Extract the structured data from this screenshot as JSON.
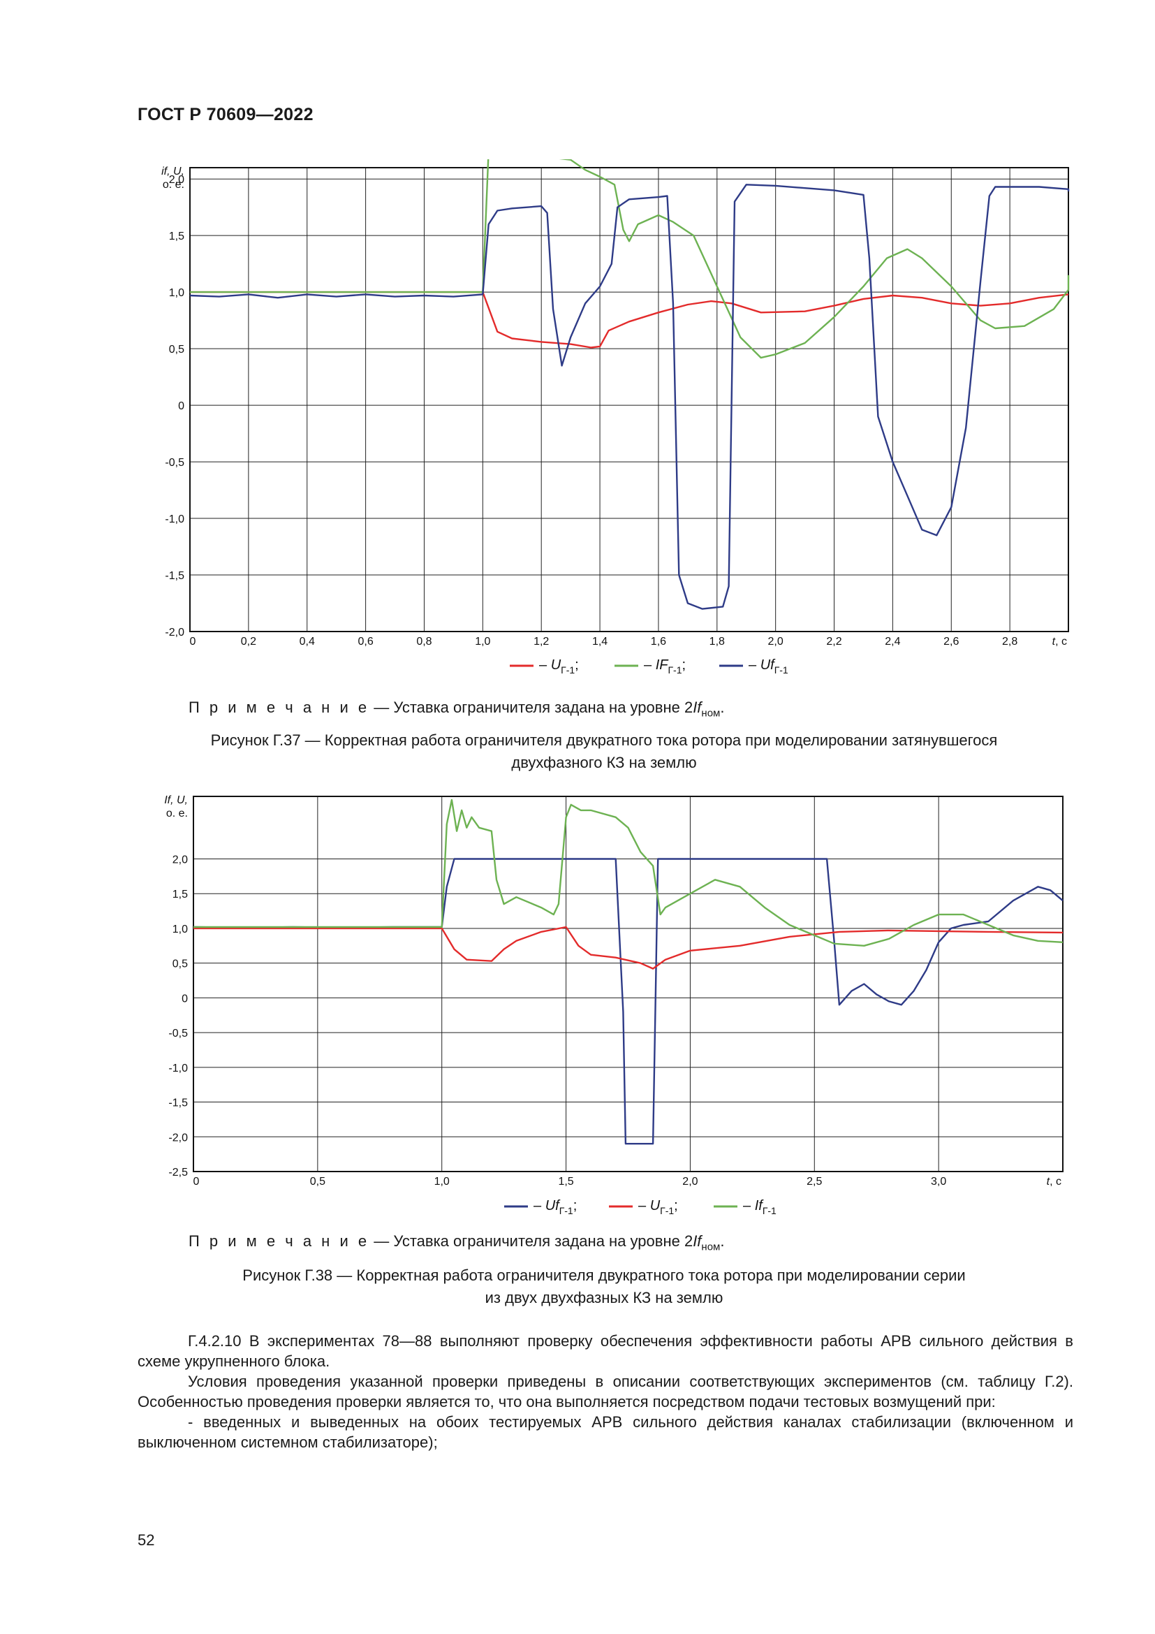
{
  "header": {
    "doc_id": "ГОСТ Р 70609—2022"
  },
  "figure1": {
    "note_prefix": "П р и м е ч а н и е",
    "note_text": " — Уставка ограничителя задана на уровне 2",
    "note_var": "If",
    "note_sub": "ном",
    "note_end": ".",
    "caption_line1": "Рисунок Г.37 — Корректная работа ограничителя двукратного тока ротора при моделировании затянувшегося",
    "caption_line2": "двухфазного КЗ на землю"
  },
  "figure2": {
    "note_prefix": "П р и м е ч а н и е",
    "note_text": " — Уставка ограничителя задана на уровне 2",
    "note_var": "If",
    "note_sub": "ном",
    "note_end": ".",
    "caption_line1": "Рисунок Г.38 — Корректная работа ограничителя двукратного тока ротора при моделировании серии",
    "caption_line2": "из двух двухфазных КЗ на землю"
  },
  "body": {
    "para1": "Г.4.2.10 В экспериментах 78—88 выполняют проверку обеспечения эффективности работы АРВ сильного действия в схеме укрупненного блока.",
    "para2": "Условия проведения указанной проверки приведены в описании соответствующих экспериментов (см. таблицу Г.2). Особенностью проведения проверки является то, что она выполняется посредством подачи тестовых возмущений при:",
    "para3": "- введенных и выведенных на обоих тестируемых АРВ сильного действия каналах стабилизации (включенном и выключенном системном стабилизаторе);"
  },
  "page_number": "52",
  "chart_data": [
    {
      "type": "line",
      "ylabel": [
        "if, U,",
        "о. е."
      ],
      "xlabel_var": "t",
      "xlabel_unit": ", с",
      "xlim": [
        0,
        3.0
      ],
      "ylim": [
        -2.0,
        2.1
      ],
      "x_ticks": [
        0,
        0.2,
        0.4,
        0.6,
        0.8,
        1.0,
        1.2,
        1.4,
        1.6,
        1.8,
        2.0,
        2.2,
        2.4,
        2.6,
        2.8
      ],
      "x_tick_labels": [
        "0",
        "0,2",
        "0,4",
        "0,6",
        "0,8",
        "1,0",
        "1,2",
        "1,4",
        "1,6",
        "1,8",
        "2,0",
        "2,2",
        "2,4",
        "2,6",
        "2,8"
      ],
      "y_ticks": [
        -2.0,
        -1.5,
        -1.0,
        -0.5,
        0,
        0.5,
        1.0,
        1.5,
        2.0
      ],
      "y_tick_labels": [
        "-2,0",
        "-1,5",
        "-1,0",
        "-0,5",
        "0",
        "0,5",
        "1,0",
        "1,5",
        "2,0"
      ],
      "grid": true,
      "legend_order": [
        "U",
        "IF",
        "Uf"
      ],
      "series": [
        {
          "id": "U",
          "name_var": "U",
          "name_sub": "Г-1",
          "legend_sep": ";",
          "color": "#e32b2b",
          "points": [
            [
              0,
              1.0
            ],
            [
              1.0,
              1.0
            ],
            [
              1.05,
              0.65
            ],
            [
              1.1,
              0.59
            ],
            [
              1.2,
              0.56
            ],
            [
              1.3,
              0.54
            ],
            [
              1.37,
              0.51
            ],
            [
              1.4,
              0.52
            ],
            [
              1.43,
              0.66
            ],
            [
              1.5,
              0.74
            ],
            [
              1.6,
              0.82
            ],
            [
              1.7,
              0.89
            ],
            [
              1.78,
              0.92
            ],
            [
              1.85,
              0.9
            ],
            [
              1.95,
              0.82
            ],
            [
              2.1,
              0.83
            ],
            [
              2.2,
              0.88
            ],
            [
              2.3,
              0.94
            ],
            [
              2.4,
              0.97
            ],
            [
              2.5,
              0.95
            ],
            [
              2.6,
              0.9
            ],
            [
              2.7,
              0.88
            ],
            [
              2.8,
              0.9
            ],
            [
              2.9,
              0.95
            ],
            [
              3.0,
              0.98
            ]
          ]
        },
        {
          "id": "IF",
          "name_var": "IF",
          "name_sub": "Г-1",
          "legend_sep": ";",
          "color": "#6db252",
          "points": [
            [
              0,
              1.0
            ],
            [
              1.0,
              1.0
            ],
            [
              1.02,
              2.25
            ],
            [
              1.04,
              2.35
            ],
            [
              1.06,
              2.2
            ],
            [
              1.08,
              2.3
            ],
            [
              1.1,
              2.2
            ],
            [
              1.12,
              2.25
            ],
            [
              1.14,
              2.2
            ],
            [
              1.16,
              2.22
            ],
            [
              1.2,
              2.2
            ],
            [
              1.3,
              2.17
            ],
            [
              1.35,
              2.08
            ],
            [
              1.4,
              2.02
            ],
            [
              1.45,
              1.95
            ],
            [
              1.48,
              1.55
            ],
            [
              1.5,
              1.45
            ],
            [
              1.53,
              1.6
            ],
            [
              1.6,
              1.68
            ],
            [
              1.65,
              1.62
            ],
            [
              1.72,
              1.5
            ],
            [
              1.8,
              1.05
            ],
            [
              1.88,
              0.6
            ],
            [
              1.95,
              0.42
            ],
            [
              2.0,
              0.45
            ],
            [
              2.1,
              0.55
            ],
            [
              2.2,
              0.78
            ],
            [
              2.3,
              1.05
            ],
            [
              2.38,
              1.3
            ],
            [
              2.45,
              1.38
            ],
            [
              2.5,
              1.3
            ],
            [
              2.6,
              1.05
            ],
            [
              2.7,
              0.75
            ],
            [
              2.75,
              0.68
            ],
            [
              2.85,
              0.7
            ],
            [
              2.95,
              0.85
            ],
            [
              3.0,
              1.02
            ],
            [
              3.05,
              1.15
            ]
          ]
        },
        {
          "id": "Uf",
          "name_var": "Uf",
          "name_sub": "Г-1",
          "legend_sep": "",
          "color": "#2e3b87",
          "points": [
            [
              0,
              0.97
            ],
            [
              0.1,
              0.96
            ],
            [
              0.2,
              0.98
            ],
            [
              0.3,
              0.95
            ],
            [
              0.4,
              0.98
            ],
            [
              0.5,
              0.96
            ],
            [
              0.6,
              0.98
            ],
            [
              0.7,
              0.96
            ],
            [
              0.8,
              0.97
            ],
            [
              0.9,
              0.96
            ],
            [
              1.0,
              0.98
            ],
            [
              1.02,
              1.6
            ],
            [
              1.05,
              1.72
            ],
            [
              1.1,
              1.74
            ],
            [
              1.2,
              1.76
            ],
            [
              1.22,
              1.7
            ],
            [
              1.24,
              0.85
            ],
            [
              1.27,
              0.35
            ],
            [
              1.3,
              0.6
            ],
            [
              1.35,
              0.9
            ],
            [
              1.4,
              1.05
            ],
            [
              1.44,
              1.25
            ],
            [
              1.46,
              1.75
            ],
            [
              1.5,
              1.82
            ],
            [
              1.6,
              1.84
            ],
            [
              1.63,
              1.85
            ],
            [
              1.65,
              0.9
            ],
            [
              1.67,
              -1.5
            ],
            [
              1.7,
              -1.75
            ],
            [
              1.75,
              -1.8
            ],
            [
              1.82,
              -1.78
            ],
            [
              1.84,
              -1.6
            ],
            [
              1.86,
              1.8
            ],
            [
              1.9,
              1.95
            ],
            [
              2.0,
              1.94
            ],
            [
              2.1,
              1.92
            ],
            [
              2.2,
              1.9
            ],
            [
              2.3,
              1.86
            ],
            [
              2.32,
              1.3
            ],
            [
              2.35,
              -0.1
            ],
            [
              2.4,
              -0.5
            ],
            [
              2.45,
              -0.8
            ],
            [
              2.5,
              -1.1
            ],
            [
              2.55,
              -1.15
            ],
            [
              2.6,
              -0.9
            ],
            [
              2.65,
              -0.2
            ],
            [
              2.7,
              1.1
            ],
            [
              2.73,
              1.85
            ],
            [
              2.75,
              1.93
            ],
            [
              2.9,
              1.93
            ],
            [
              3.0,
              1.91
            ],
            [
              3.05,
              1.89
            ]
          ]
        }
      ]
    },
    {
      "type": "line",
      "ylabel": [
        "If, U,",
        "о. е."
      ],
      "xlabel_var": "t",
      "xlabel_unit": ", с",
      "xlim": [
        0,
        3.5
      ],
      "ylim": [
        -2.5,
        2.9
      ],
      "x_ticks": [
        0,
        0.5,
        1.0,
        1.5,
        2.0,
        2.5,
        3.0
      ],
      "x_tick_labels": [
        "0",
        "0,5",
        "1,0",
        "1,5",
        "2,0",
        "2,5",
        "3,0"
      ],
      "y_ticks": [
        -2.5,
        -2.0,
        -1.5,
        -1.0,
        -0.5,
        0,
        0.5,
        1.0,
        1.5,
        2.0
      ],
      "y_tick_labels": [
        "-2,5",
        "-2,0",
        "-1,5",
        "-1,0",
        "-0,5",
        "0",
        "0,5",
        "1,0",
        "1,5",
        "2,0"
      ],
      "grid": true,
      "legend_order": [
        "Uf",
        "U",
        "If"
      ],
      "series": [
        {
          "id": "Uf",
          "name_var": "Uf",
          "name_sub": "Г-1",
          "legend_sep": ";",
          "color": "#2e3b87",
          "points": [
            [
              0,
              1.02
            ],
            [
              0.2,
              1.01
            ],
            [
              0.4,
              1.02
            ],
            [
              0.6,
              1.01
            ],
            [
              0.8,
              1.02
            ],
            [
              1.0,
              1.02
            ],
            [
              1.02,
              1.6
            ],
            [
              1.05,
              2.0
            ],
            [
              1.2,
              2.0
            ],
            [
              1.5,
              2.0
            ],
            [
              1.7,
              2.0
            ],
            [
              1.73,
              -0.2
            ],
            [
              1.74,
              -2.1
            ],
            [
              1.85,
              -2.1
            ],
            [
              1.86,
              -0.1
            ],
            [
              1.87,
              2.0
            ],
            [
              2.0,
              2.0
            ],
            [
              2.3,
              2.0
            ],
            [
              2.55,
              2.0
            ],
            [
              2.58,
              0.8
            ],
            [
              2.6,
              -0.1
            ],
            [
              2.65,
              0.1
            ],
            [
              2.7,
              0.2
            ],
            [
              2.75,
              0.05
            ],
            [
              2.8,
              -0.05
            ],
            [
              2.85,
              -0.1
            ],
            [
              2.9,
              0.1
            ],
            [
              2.95,
              0.4
            ],
            [
              3.0,
              0.8
            ],
            [
              3.05,
              1.0
            ],
            [
              3.1,
              1.05
            ],
            [
              3.2,
              1.1
            ],
            [
              3.3,
              1.4
            ],
            [
              3.4,
              1.6
            ],
            [
              3.45,
              1.55
            ],
            [
              3.5,
              1.4
            ]
          ]
        },
        {
          "id": "U",
          "name_var": "U",
          "name_sub": "Г-1",
          "legend_sep": ";",
          "color": "#e32b2b",
          "points": [
            [
              0,
              1.0
            ],
            [
              1.0,
              1.0
            ],
            [
              1.05,
              0.7
            ],
            [
              1.1,
              0.55
            ],
            [
              1.2,
              0.53
            ],
            [
              1.25,
              0.7
            ],
            [
              1.3,
              0.82
            ],
            [
              1.4,
              0.95
            ],
            [
              1.5,
              1.02
            ],
            [
              1.55,
              0.75
            ],
            [
              1.6,
              0.62
            ],
            [
              1.7,
              0.58
            ],
            [
              1.8,
              0.5
            ],
            [
              1.85,
              0.42
            ],
            [
              1.9,
              0.55
            ],
            [
              2.0,
              0.68
            ],
            [
              2.2,
              0.75
            ],
            [
              2.4,
              0.88
            ],
            [
              2.6,
              0.95
            ],
            [
              2.8,
              0.97
            ],
            [
              3.0,
              0.96
            ],
            [
              3.2,
              0.95
            ],
            [
              3.5,
              0.94
            ]
          ]
        },
        {
          "id": "If",
          "name_var": "If",
          "name_sub": "Г-1",
          "legend_sep": "",
          "color": "#6db252",
          "points": [
            [
              0,
              1.02
            ],
            [
              1.0,
              1.02
            ],
            [
              1.02,
              2.5
            ],
            [
              1.04,
              2.85
            ],
            [
              1.06,
              2.4
            ],
            [
              1.08,
              2.7
            ],
            [
              1.1,
              2.45
            ],
            [
              1.12,
              2.6
            ],
            [
              1.15,
              2.45
            ],
            [
              1.2,
              2.4
            ],
            [
              1.22,
              1.7
            ],
            [
              1.25,
              1.35
            ],
            [
              1.3,
              1.45
            ],
            [
              1.4,
              1.3
            ],
            [
              1.45,
              1.2
            ],
            [
              1.47,
              1.35
            ],
            [
              1.5,
              2.6
            ],
            [
              1.52,
              2.78
            ],
            [
              1.56,
              2.7
            ],
            [
              1.6,
              2.7
            ],
            [
              1.7,
              2.6
            ],
            [
              1.75,
              2.45
            ],
            [
              1.8,
              2.1
            ],
            [
              1.85,
              1.9
            ],
            [
              1.88,
              1.2
            ],
            [
              1.9,
              1.3
            ],
            [
              2.0,
              1.5
            ],
            [
              2.1,
              1.7
            ],
            [
              2.2,
              1.6
            ],
            [
              2.3,
              1.3
            ],
            [
              2.4,
              1.05
            ],
            [
              2.5,
              0.9
            ],
            [
              2.58,
              0.78
            ],
            [
              2.7,
              0.75
            ],
            [
              2.8,
              0.85
            ],
            [
              2.9,
              1.05
            ],
            [
              3.0,
              1.2
            ],
            [
              3.1,
              1.2
            ],
            [
              3.2,
              1.05
            ],
            [
              3.3,
              0.9
            ],
            [
              3.4,
              0.82
            ],
            [
              3.5,
              0.8
            ]
          ]
        }
      ]
    }
  ]
}
